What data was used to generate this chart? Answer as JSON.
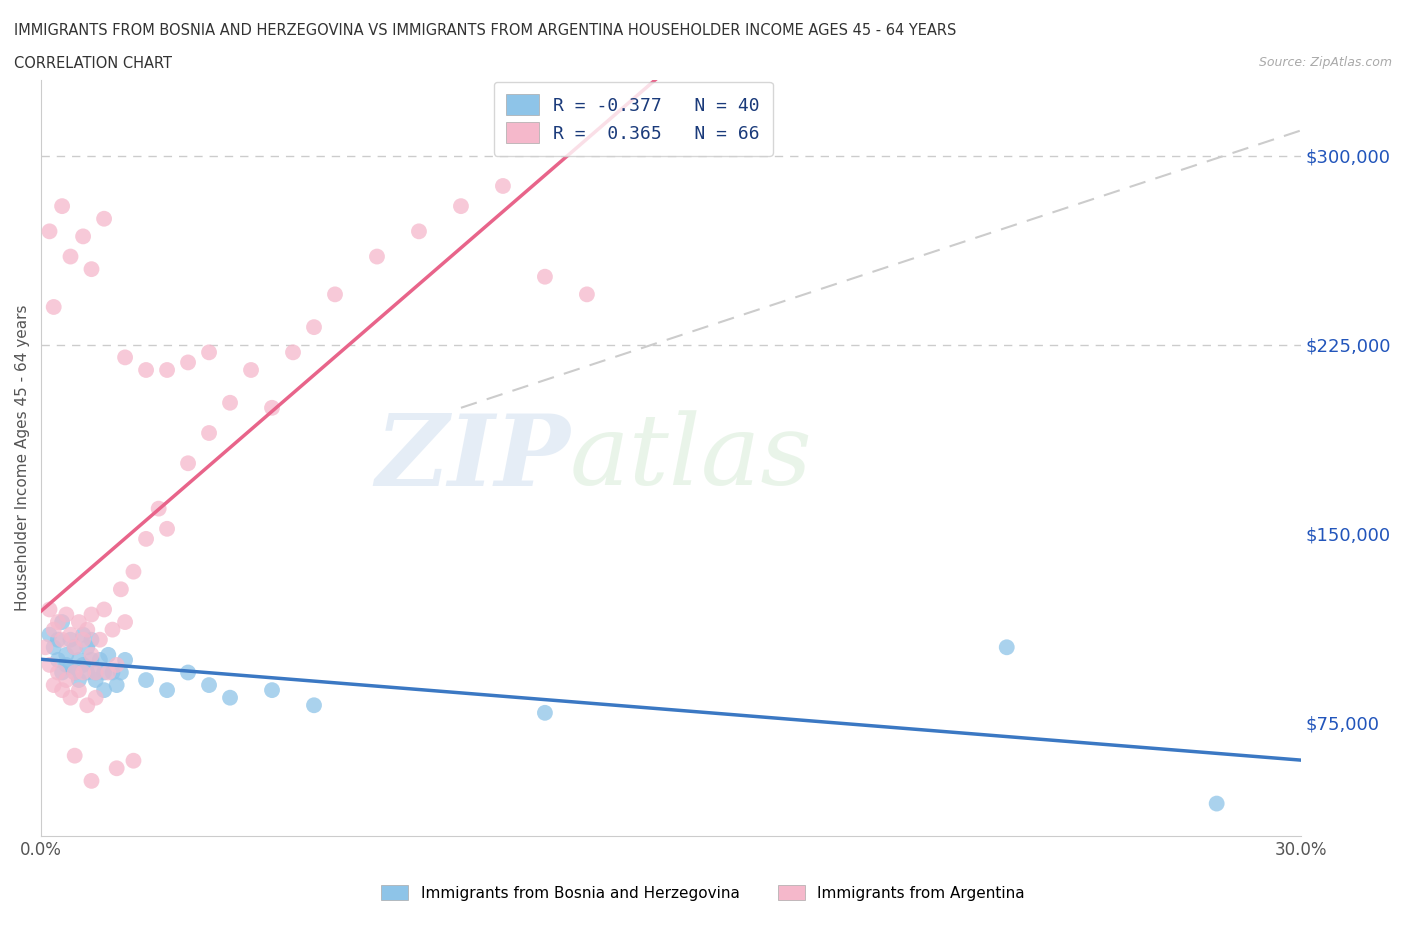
{
  "title_line1": "IMMIGRANTS FROM BOSNIA AND HERZEGOVINA VS IMMIGRANTS FROM ARGENTINA HOUSEHOLDER INCOME AGES 45 - 64 YEARS",
  "title_line2": "CORRELATION CHART",
  "source_text": "Source: ZipAtlas.com",
  "ylabel": "Householder Income Ages 45 - 64 years",
  "xlim": [
    0.0,
    0.3
  ],
  "ylim": [
    30000,
    330000
  ],
  "yticks": [
    75000,
    150000,
    225000,
    300000
  ],
  "ytick_labels": [
    "$75,000",
    "$150,000",
    "$225,000",
    "$300,000"
  ],
  "xticks": [
    0.0,
    0.05,
    0.1,
    0.15,
    0.2,
    0.25,
    0.3
  ],
  "xtick_labels": [
    "0.0%",
    "",
    "",
    "",
    "",
    "",
    "30.0%"
  ],
  "watermark_zip": "ZIP",
  "watermark_atlas": "atlas",
  "legend_r1": "R = -0.377   N = 40",
  "legend_r2": "R =  0.365   N = 66",
  "color_blue": "#8ec4e8",
  "color_pink": "#f5b8cb",
  "color_blue_line": "#3b78c3",
  "color_pink_line": "#e8648a",
  "color_dash": "#cccccc",
  "bosnia_x": [
    0.002,
    0.003,
    0.004,
    0.004,
    0.005,
    0.005,
    0.006,
    0.006,
    0.007,
    0.007,
    0.008,
    0.008,
    0.009,
    0.009,
    0.01,
    0.01,
    0.011,
    0.011,
    0.012,
    0.012,
    0.013,
    0.013,
    0.014,
    0.015,
    0.015,
    0.016,
    0.017,
    0.018,
    0.019,
    0.02,
    0.025,
    0.03,
    0.035,
    0.04,
    0.045,
    0.055,
    0.065,
    0.12,
    0.23,
    0.28
  ],
  "bosnia_y": [
    110000,
    105000,
    108000,
    100000,
    115000,
    95000,
    102000,
    98000,
    108000,
    97000,
    95000,
    105000,
    100000,
    92000,
    110000,
    98000,
    105000,
    95000,
    100000,
    108000,
    95000,
    92000,
    100000,
    95000,
    88000,
    102000,
    95000,
    90000,
    95000,
    100000,
    92000,
    88000,
    95000,
    90000,
    85000,
    88000,
    82000,
    79000,
    105000,
    43000
  ],
  "argentina_x": [
    0.001,
    0.002,
    0.002,
    0.003,
    0.003,
    0.004,
    0.004,
    0.005,
    0.005,
    0.006,
    0.006,
    0.007,
    0.007,
    0.008,
    0.008,
    0.009,
    0.009,
    0.01,
    0.01,
    0.011,
    0.011,
    0.012,
    0.012,
    0.013,
    0.013,
    0.014,
    0.015,
    0.016,
    0.017,
    0.018,
    0.019,
    0.02,
    0.022,
    0.025,
    0.028,
    0.03,
    0.035,
    0.04,
    0.045,
    0.05,
    0.055,
    0.06,
    0.065,
    0.07,
    0.08,
    0.09,
    0.1,
    0.11,
    0.12,
    0.13,
    0.002,
    0.003,
    0.005,
    0.007,
    0.01,
    0.012,
    0.015,
    0.02,
    0.025,
    0.03,
    0.035,
    0.04,
    0.008,
    0.012,
    0.018,
    0.022
  ],
  "argentina_y": [
    105000,
    120000,
    98000,
    112000,
    90000,
    115000,
    95000,
    108000,
    88000,
    118000,
    92000,
    110000,
    85000,
    105000,
    95000,
    115000,
    88000,
    108000,
    95000,
    112000,
    82000,
    102000,
    118000,
    95000,
    85000,
    108000,
    120000,
    95000,
    112000,
    98000,
    128000,
    115000,
    135000,
    148000,
    160000,
    152000,
    178000,
    190000,
    202000,
    215000,
    200000,
    222000,
    232000,
    245000,
    260000,
    270000,
    280000,
    288000,
    252000,
    245000,
    270000,
    240000,
    280000,
    260000,
    268000,
    255000,
    275000,
    220000,
    215000,
    215000,
    218000,
    222000,
    62000,
    52000,
    57000,
    60000
  ]
}
